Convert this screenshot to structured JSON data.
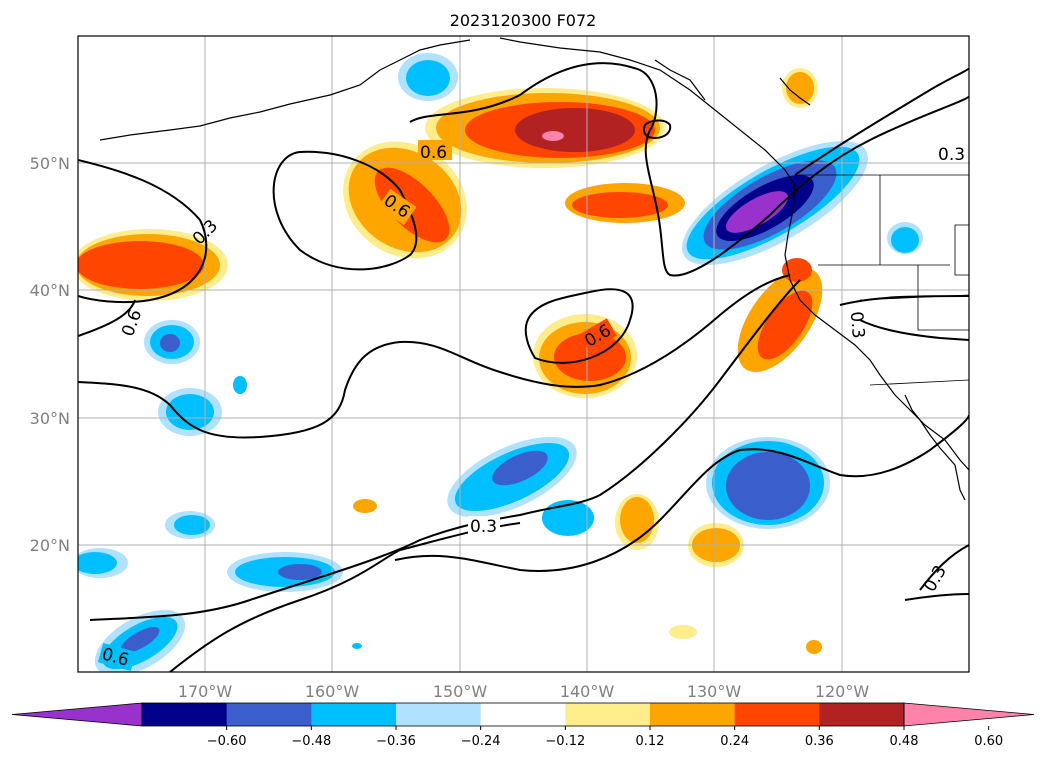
{
  "title": "2023120300 F072",
  "lon_ticks": [
    "170°W",
    "160°W",
    "150°W",
    "140°W",
    "130°W",
    "120°W"
  ],
  "lat_ticks": [
    "50°N",
    "40°N",
    "30°N",
    "20°N"
  ],
  "colorbar": {
    "ticks": [
      "−0.60",
      "−0.48",
      "−0.36",
      "−0.24",
      "−0.12",
      "0.12",
      "0.24",
      "0.36",
      "0.48",
      "0.60"
    ],
    "colors": [
      "#9932cc",
      "#00008b",
      "#3a5fcd",
      "#00bfff",
      "#b0e2ff",
      "#ffffff",
      "#ffec8b",
      "#ffa500",
      "#ff4500",
      "#b22222",
      "#ff82ab"
    ]
  },
  "contour_labels": [
    "0.6",
    "0.6",
    "0.6",
    "0.6",
    "0.3",
    "0.3",
    "0.3",
    "0.3",
    "0.3",
    "0.6"
  ]
}
